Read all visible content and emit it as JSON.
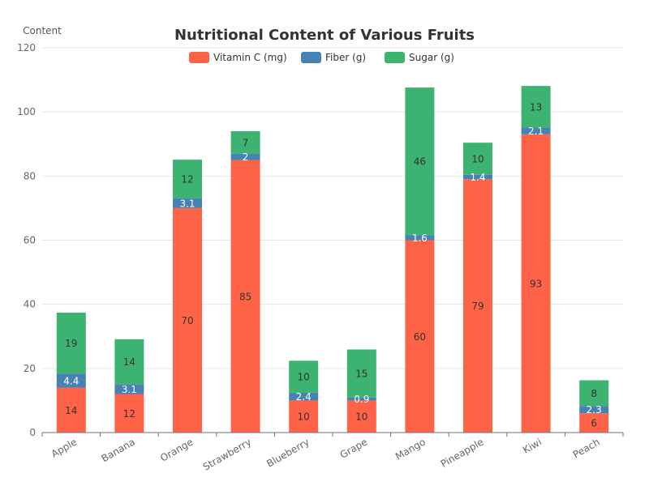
{
  "chart_data": {
    "type": "bar",
    "stacked": true,
    "title": "Nutritional Content of Various Fruits",
    "xlabel": "",
    "ylabel": "Content",
    "ylim": [
      0,
      120
    ],
    "yticks": [
      0,
      20,
      40,
      60,
      80,
      100,
      120
    ],
    "grid": true,
    "legend_position": "top-center",
    "categories": [
      "Apple",
      "Banana",
      "Orange",
      "Strawberry",
      "Blueberry",
      "Grape",
      "Mango",
      "Pineapple",
      "Kiwi",
      "Peach"
    ],
    "series": [
      {
        "name": "Vitamin C (mg)",
        "color": "#ff6347",
        "label_color": "#333333",
        "values": [
          14,
          12,
          70,
          85,
          10,
          10,
          60,
          79,
          93,
          6
        ]
      },
      {
        "name": "Fiber (g)",
        "color": "#4682b4",
        "label_color": "#ffffff",
        "values": [
          4.4,
          3.1,
          3.1,
          2,
          2.4,
          0.9,
          1.6,
          1.4,
          2.1,
          2.3
        ]
      },
      {
        "name": "Sugar (g)",
        "color": "#3cb371",
        "label_color": "#333333",
        "values": [
          19,
          14,
          12,
          7,
          10,
          15,
          46,
          10,
          13,
          8
        ]
      }
    ]
  }
}
